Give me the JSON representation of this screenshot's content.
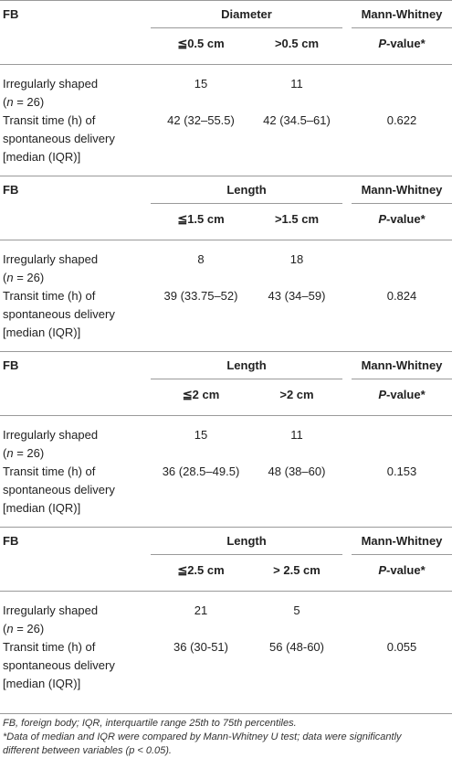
{
  "header": {
    "fb": "FB",
    "mann_whitney": "Mann-Whitney",
    "p_value_italic": "P",
    "p_value_rest": "-value*"
  },
  "rows": {
    "irregular_line1": "Irregularly shaped",
    "irregular_line2_open": "(",
    "irregular_n": "n",
    "irregular_line2_rest": " = 26)",
    "transit_line1": "Transit time (h) of",
    "transit_line2": "spontaneous delivery",
    "transit_line3": "[median (IQR)]"
  },
  "blocks": [
    {
      "group": "Diameter",
      "col1": "≦0.5 cm",
      "col2": ">0.5 cm",
      "count1": "15",
      "count2": "11",
      "transit1": "42 (32–55.5)",
      "transit2": "42 (34.5–61)",
      "p": "0.622"
    },
    {
      "group": "Length",
      "col1": "≦1.5 cm",
      "col2": ">1.5 cm",
      "count1": "8",
      "count2": "18",
      "transit1": "39 (33.75–52)",
      "transit2": "43 (34–59)",
      "p": "0.824"
    },
    {
      "group": "Length",
      "col1": "≦2 cm",
      "col2": ">2 cm",
      "count1": "15",
      "count2": "11",
      "transit1": "36 (28.5–49.5)",
      "transit2": "48 (38–60)",
      "p": "0.153"
    },
    {
      "group": "Length",
      "col1": "≦2.5 cm",
      "col2": "> 2.5 cm",
      "count1": "21",
      "count2": "5",
      "transit1": "36 (30-51)",
      "transit2": "56 (48-60)",
      "p": "0.055"
    }
  ],
  "footnotes": {
    "line1": "FB, foreign body; IQR, interquartile range 25th to 75th percentiles.",
    "line2": "*Data of median and IQR were compared by Mann-Whitney U test; data were significantly",
    "line3": "different between variables (p < 0.05)."
  }
}
